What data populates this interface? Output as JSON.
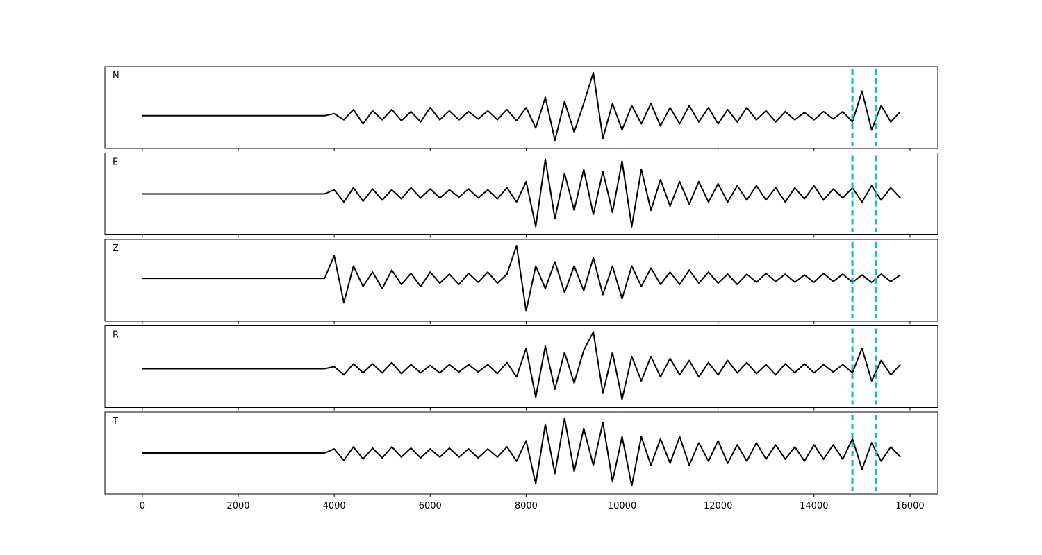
{
  "chart_data": [
    {
      "type": "line",
      "label": "N",
      "xlim": [
        -780,
        16580
      ],
      "ylim": [
        -0.8,
        1.2
      ],
      "xticks": [
        0,
        2000,
        4000,
        6000,
        8000,
        10000,
        12000,
        14000,
        16000
      ],
      "xtick_labels": false,
      "color": "#000000",
      "x": [
        0,
        200,
        400,
        600,
        800,
        1000,
        1200,
        1400,
        1600,
        1800,
        2000,
        2200,
        2400,
        2600,
        2800,
        3000,
        3200,
        3400,
        3600,
        3800,
        4000,
        4200,
        4400,
        4600,
        4800,
        5000,
        5200,
        5400,
        5600,
        5800,
        6000,
        6200,
        6400,
        6600,
        6800,
        7000,
        7200,
        7400,
        7600,
        7800,
        8000,
        8200,
        8400,
        8600,
        8800,
        9000,
        9200,
        9400,
        9600,
        9800,
        10000,
        10200,
        10400,
        10600,
        10800,
        11000,
        11200,
        11400,
        11600,
        11800,
        12000,
        12200,
        12400,
        12600,
        12800,
        13000,
        13200,
        13400,
        13600,
        13800,
        14000,
        14200,
        14400,
        14600,
        14800,
        15000,
        15200,
        15400,
        15600,
        15800
      ],
      "values": [
        0,
        0,
        0,
        0,
        0,
        0,
        0,
        0,
        0,
        0,
        0,
        0,
        0,
        0,
        0,
        0,
        0,
        0,
        0,
        0,
        0.05,
        -0.1,
        0.15,
        -0.2,
        0.12,
        -0.1,
        0.15,
        -0.12,
        0.1,
        -0.15,
        0.2,
        -0.1,
        0.12,
        -0.1,
        0.1,
        -0.08,
        0.12,
        -0.1,
        0.15,
        -0.12,
        0.2,
        -0.3,
        0.45,
        -0.6,
        0.35,
        -0.4,
        0.3,
        1.05,
        -0.55,
        0.3,
        -0.35,
        0.25,
        -0.2,
        0.3,
        -0.25,
        0.2,
        -0.2,
        0.25,
        -0.15,
        0.2,
        -0.2,
        0.15,
        -0.15,
        0.2,
        -0.1,
        0.12,
        -0.15,
        0.1,
        -0.1,
        0.08,
        -0.1,
        0.1,
        -0.08,
        0.1,
        -0.15,
        0.6,
        -0.35,
        0.25,
        -0.15,
        0.1
      ],
      "vlines": {
        "values": [
          14800,
          15300
        ],
        "color": "#00bfbf"
      }
    },
    {
      "type": "line",
      "label": "E",
      "xlim": [
        -780,
        16580
      ],
      "ylim": [
        -1.0,
        1.0
      ],
      "xticks": [
        0,
        2000,
        4000,
        6000,
        8000,
        10000,
        12000,
        14000,
        16000
      ],
      "xtick_labels": false,
      "color": "#000000",
      "x": [
        0,
        200,
        400,
        600,
        800,
        1000,
        1200,
        1400,
        1600,
        1800,
        2000,
        2200,
        2400,
        2600,
        2800,
        3000,
        3200,
        3400,
        3600,
        3800,
        4000,
        4200,
        4400,
        4600,
        4800,
        5000,
        5200,
        5400,
        5600,
        5800,
        6000,
        6200,
        6400,
        6600,
        6800,
        7000,
        7200,
        7400,
        7600,
        7800,
        8000,
        8200,
        8400,
        8600,
        8800,
        9000,
        9200,
        9400,
        9600,
        9800,
        10000,
        10200,
        10400,
        10600,
        10800,
        11000,
        11200,
        11400,
        11600,
        11800,
        12000,
        12200,
        12400,
        12600,
        12800,
        13000,
        13200,
        13400,
        13600,
        13800,
        14000,
        14200,
        14400,
        14600,
        14800,
        15000,
        15200,
        15400,
        15600,
        15800
      ],
      "values": [
        0,
        0,
        0,
        0,
        0,
        0,
        0,
        0,
        0,
        0,
        0,
        0,
        0,
        0,
        0,
        0,
        0,
        0,
        0,
        0,
        0.1,
        -0.2,
        0.15,
        -0.18,
        0.12,
        -0.15,
        0.1,
        -0.12,
        0.15,
        -0.1,
        0.12,
        -0.1,
        0.1,
        -0.08,
        0.12,
        -0.1,
        0.1,
        -0.12,
        0.15,
        -0.2,
        0.3,
        -0.8,
        0.85,
        -0.6,
        0.5,
        -0.4,
        0.6,
        -0.5,
        0.55,
        -0.45,
        0.8,
        -0.8,
        0.6,
        -0.4,
        0.35,
        -0.3,
        0.3,
        -0.25,
        0.3,
        -0.2,
        0.25,
        -0.2,
        0.2,
        -0.15,
        0.2,
        -0.15,
        0.15,
        -0.2,
        0.15,
        -0.12,
        0.2,
        -0.15,
        0.12,
        -0.1,
        0.15,
        -0.2,
        0.2,
        -0.15,
        0.15,
        -0.1
      ],
      "vlines": {
        "values": [
          14800,
          15300
        ],
        "color": "#00bfbf"
      }
    },
    {
      "type": "line",
      "label": "Z",
      "xlim": [
        -780,
        16580
      ],
      "ylim": [
        -1.05,
        0.95
      ],
      "xticks": [
        0,
        2000,
        4000,
        6000,
        8000,
        10000,
        12000,
        14000,
        16000
      ],
      "xtick_labels": false,
      "color": "#000000",
      "x": [
        0,
        200,
        400,
        600,
        800,
        1000,
        1200,
        1400,
        1600,
        1800,
        2000,
        2200,
        2400,
        2600,
        2800,
        3000,
        3200,
        3400,
        3600,
        3800,
        4000,
        4200,
        4400,
        4600,
        4800,
        5000,
        5200,
        5400,
        5600,
        5800,
        6000,
        6200,
        6400,
        6600,
        6800,
        7000,
        7200,
        7400,
        7600,
        7800,
        8000,
        8200,
        8400,
        8600,
        8800,
        9000,
        9200,
        9400,
        9600,
        9800,
        10000,
        10200,
        10400,
        10600,
        10800,
        11000,
        11200,
        11400,
        11600,
        11800,
        12000,
        12200,
        12400,
        12600,
        12800,
        13000,
        13200,
        13400,
        13600,
        13800,
        14000,
        14200,
        14400,
        14600,
        14800,
        15000,
        15200,
        15400,
        15600,
        15800
      ],
      "values": [
        0,
        0,
        0,
        0,
        0,
        0,
        0,
        0,
        0,
        0,
        0,
        0,
        0,
        0,
        0,
        0,
        0,
        0,
        0,
        0,
        0.55,
        -0.6,
        0.3,
        -0.2,
        0.15,
        -0.25,
        0.2,
        -0.15,
        0.12,
        -0.2,
        0.15,
        -0.12,
        0.1,
        -0.15,
        0.12,
        -0.1,
        0.15,
        -0.12,
        0.1,
        0.8,
        -0.8,
        0.3,
        -0.25,
        0.4,
        -0.35,
        0.3,
        -0.3,
        0.5,
        -0.4,
        0.3,
        -0.5,
        0.3,
        -0.2,
        0.25,
        -0.15,
        0.15,
        -0.15,
        0.2,
        -0.12,
        0.15,
        -0.12,
        0.1,
        -0.15,
        0.1,
        -0.1,
        0.12,
        -0.08,
        0.1,
        -0.1,
        0.08,
        -0.1,
        0.12,
        -0.08,
        0.1,
        -0.1,
        0.08,
        -0.1,
        0.1,
        -0.08,
        0.08
      ],
      "vlines": {
        "values": [
          14800,
          15300
        ],
        "color": "#00bfbf"
      }
    },
    {
      "type": "line",
      "label": "R",
      "xlim": [
        -780,
        16580
      ],
      "ylim": [
        -0.95,
        1.05
      ],
      "xticks": [
        0,
        2000,
        4000,
        6000,
        8000,
        10000,
        12000,
        14000,
        16000
      ],
      "xtick_labels": false,
      "color": "#000000",
      "x": [
        0,
        200,
        400,
        600,
        800,
        1000,
        1200,
        1400,
        1600,
        1800,
        2000,
        2200,
        2400,
        2600,
        2800,
        3000,
        3200,
        3400,
        3600,
        3800,
        4000,
        4200,
        4400,
        4600,
        4800,
        5000,
        5200,
        5400,
        5600,
        5800,
        6000,
        6200,
        6400,
        6600,
        6800,
        7000,
        7200,
        7400,
        7600,
        7800,
        8000,
        8200,
        8400,
        8600,
        8800,
        9000,
        9200,
        9400,
        9600,
        9800,
        10000,
        10200,
        10400,
        10600,
        10800,
        11000,
        11200,
        11400,
        11600,
        11800,
        12000,
        12200,
        12400,
        12600,
        12800,
        13000,
        13200,
        13400,
        13600,
        13800,
        14000,
        14200,
        14400,
        14600,
        14800,
        15000,
        15200,
        15400,
        15600,
        15800
      ],
      "values": [
        0,
        0,
        0,
        0,
        0,
        0,
        0,
        0,
        0,
        0,
        0,
        0,
        0,
        0,
        0,
        0,
        0,
        0,
        0,
        0,
        0.05,
        -0.15,
        0.12,
        -0.1,
        0.12,
        -0.1,
        0.15,
        -0.12,
        0.1,
        -0.1,
        0.08,
        -0.1,
        0.1,
        -0.08,
        0.1,
        -0.08,
        0.1,
        -0.12,
        0.15,
        -0.2,
        0.5,
        -0.7,
        0.55,
        -0.5,
        0.4,
        -0.35,
        0.45,
        0.9,
        -0.6,
        0.4,
        -0.75,
        0.3,
        -0.3,
        0.3,
        -0.2,
        0.25,
        -0.15,
        0.2,
        -0.2,
        0.15,
        -0.15,
        0.2,
        -0.1,
        0.15,
        -0.12,
        0.1,
        -0.15,
        0.12,
        -0.1,
        0.12,
        -0.1,
        0.1,
        -0.08,
        0.1,
        -0.1,
        0.5,
        -0.3,
        0.2,
        -0.15,
        0.1
      ],
      "vlines": {
        "values": [
          14800,
          15300
        ],
        "color": "#00bfbf"
      }
    },
    {
      "type": "line",
      "label": "T",
      "xlim": [
        -780,
        16580
      ],
      "ylim": [
        -1.0,
        1.0
      ],
      "xticks": [
        0,
        2000,
        4000,
        6000,
        8000,
        10000,
        12000,
        14000,
        16000
      ],
      "xtick_labels": true,
      "color": "#000000",
      "x": [
        0,
        200,
        400,
        600,
        800,
        1000,
        1200,
        1400,
        1600,
        1800,
        2000,
        2200,
        2400,
        2600,
        2800,
        3000,
        3200,
        3400,
        3600,
        3800,
        4000,
        4200,
        4400,
        4600,
        4800,
        5000,
        5200,
        5400,
        5600,
        5800,
        6000,
        6200,
        6400,
        6600,
        6800,
        7000,
        7200,
        7400,
        7600,
        7800,
        8000,
        8200,
        8400,
        8600,
        8800,
        9000,
        9200,
        9400,
        9600,
        9800,
        10000,
        10200,
        10400,
        10600,
        10800,
        11000,
        11200,
        11400,
        11600,
        11800,
        12000,
        12200,
        12400,
        12600,
        12800,
        13000,
        13200,
        13400,
        13600,
        13800,
        14000,
        14200,
        14400,
        14600,
        14800,
        15000,
        15200,
        15400,
        15600,
        15800
      ],
      "values": [
        0,
        0,
        0,
        0,
        0,
        0,
        0,
        0,
        0,
        0,
        0,
        0,
        0,
        0,
        0,
        0,
        0,
        0,
        0,
        0,
        0.1,
        -0.18,
        0.15,
        -0.15,
        0.12,
        -0.12,
        0.15,
        -0.1,
        0.12,
        -0.12,
        0.1,
        -0.1,
        0.12,
        -0.1,
        0.1,
        -0.12,
        0.1,
        -0.1,
        0.15,
        -0.2,
        0.3,
        -0.75,
        0.7,
        -0.5,
        0.85,
        -0.45,
        0.6,
        -0.3,
        0.75,
        -0.7,
        0.4,
        -0.8,
        0.4,
        -0.3,
        0.35,
        -0.25,
        0.4,
        -0.3,
        0.25,
        -0.2,
        0.3,
        -0.25,
        0.2,
        -0.2,
        0.25,
        -0.15,
        0.2,
        -0.15,
        0.15,
        -0.2,
        0.2,
        -0.15,
        0.2,
        -0.15,
        0.35,
        -0.4,
        0.25,
        -0.2,
        0.15,
        -0.1
      ],
      "vlines": {
        "values": [
          14800,
          15300
        ],
        "color": "#00bfbf"
      }
    }
  ]
}
